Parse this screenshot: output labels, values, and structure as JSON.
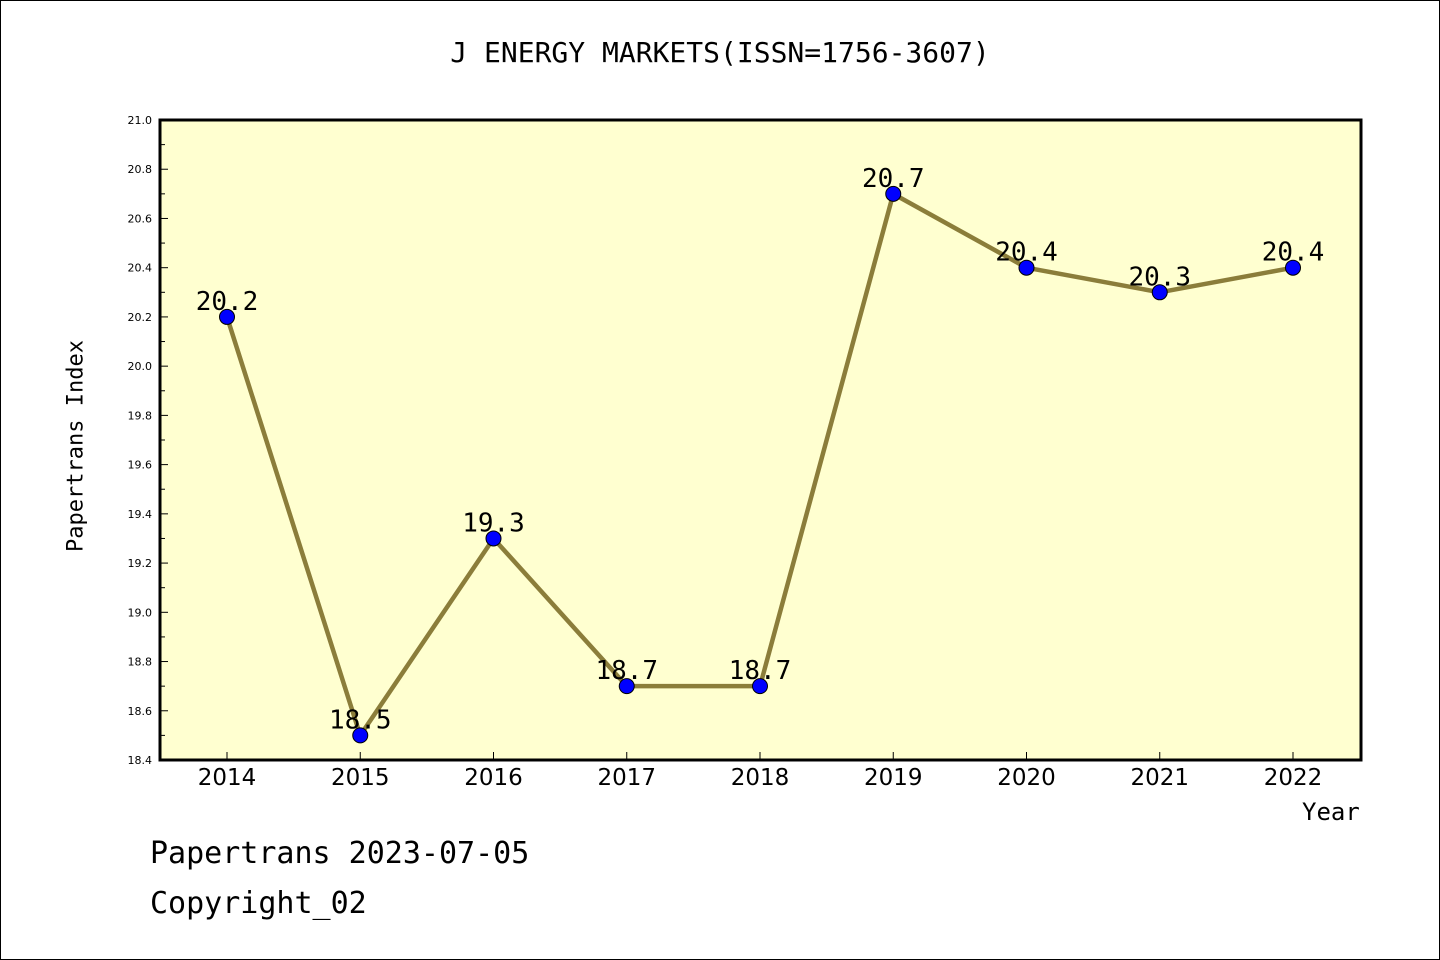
{
  "chart_data": {
    "type": "line",
    "title": "J ENERGY MARKETS(ISSN=1756-3607)",
    "xlabel": "Year",
    "ylabel": "Papertrans Index",
    "categories": [
      "2014",
      "2015",
      "2016",
      "2017",
      "2018",
      "2019",
      "2020",
      "2021",
      "2022"
    ],
    "series": [
      {
        "values": [
          20.2,
          18.5,
          19.3,
          18.7,
          18.7,
          20.7,
          20.4,
          20.3,
          20.4
        ],
        "data_labels": [
          "20.2",
          "18.5",
          "19.3",
          "18.7",
          "18.7",
          "20.7",
          "20.4",
          "20.3",
          "20.4"
        ]
      }
    ],
    "ylim": [
      18.4,
      21.0
    ],
    "yticks": [
      "18.4",
      "18.6",
      "18.8",
      "19.0",
      "19.2",
      "19.4",
      "19.6",
      "19.8",
      "20.0",
      "20.2",
      "20.4",
      "20.6",
      "20.8",
      "21.0"
    ],
    "grid": false,
    "colors": {
      "line": "#8B7D3A",
      "marker": "#0000FF",
      "plot_bg": "#FFFFD0"
    }
  },
  "footer": {
    "line1": "Papertrans 2023-07-05",
    "line2": "Copyright_02"
  }
}
